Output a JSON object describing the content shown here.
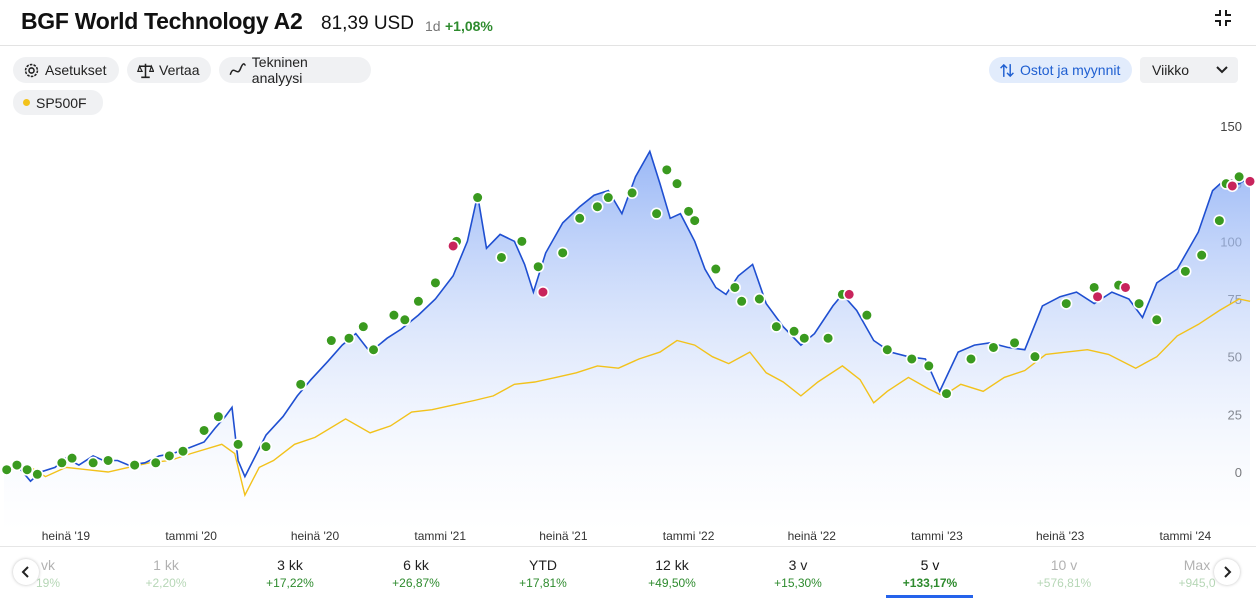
{
  "header": {
    "title": "BGF World Technology A2",
    "price": "81,39 USD",
    "period": "1d",
    "change": "+1,08%"
  },
  "toolbar": {
    "settings_label": "Asetukset",
    "compare_label": "Vertaa",
    "technical_label": "Tekninen analyysi",
    "trades_label": "Ostot ja myynnit",
    "period_select": "Viikko"
  },
  "legend": {
    "comparison": "SP500F"
  },
  "colors": {
    "fund_line": "#1f4fd1",
    "index_line": "#f2c21b",
    "buy_marker": "#3a9a1f",
    "sell_marker": "#c8245c",
    "accent": "#2563eb",
    "positive": "#2e8b2e"
  },
  "icons": {
    "collapse": "collapse-arrows-icon",
    "settings": "gear-icon",
    "compare": "scales-icon",
    "technical": "trend-line-icon",
    "trades": "up-down-arrows-icon",
    "dropdown": "chevron-down-icon",
    "prev": "chevron-left-icon",
    "next": "chevron-right-icon"
  },
  "chart_data": {
    "type": "line",
    "y_ticks": [
      "150",
      "125",
      "100",
      "75",
      "50",
      "25",
      "0"
    ],
    "ylim": [
      -15,
      150
    ],
    "x_ticks": [
      "heinä '19",
      "tammi '20",
      "heinä '20",
      "tammi '21",
      "heinä '21",
      "tammi '22",
      "heinä '22",
      "tammi '23",
      "heinä '23",
      "tammi '24"
    ],
    "x_tick_dates": [
      "2019-07-01",
      "2020-01-01",
      "2020-07-01",
      "2021-01-01",
      "2021-07-01",
      "2022-01-01",
      "2022-07-01",
      "2023-01-01",
      "2023-07-01",
      "2024-01-01"
    ],
    "x_range": [
      "2019-04-01",
      "2024-04-05"
    ],
    "series": [
      {
        "name": "BGF World Technology A2",
        "role": "fund",
        "area": true,
        "points": [
          [
            "2019-04-01",
            0
          ],
          [
            "2019-04-20",
            3
          ],
          [
            "2019-05-10",
            -4
          ],
          [
            "2019-05-25",
            0
          ],
          [
            "2019-06-15",
            2
          ],
          [
            "2019-07-01",
            6
          ],
          [
            "2019-07-20",
            3
          ],
          [
            "2019-08-10",
            7
          ],
          [
            "2019-08-25",
            5
          ],
          [
            "2019-09-15",
            5
          ],
          [
            "2019-10-01",
            3
          ],
          [
            "2019-10-25",
            4
          ],
          [
            "2019-11-15",
            7
          ],
          [
            "2019-12-05",
            8
          ],
          [
            "2019-12-25",
            10
          ],
          [
            "2020-01-20",
            13
          ],
          [
            "2020-02-05",
            19
          ],
          [
            "2020-02-20",
            24
          ],
          [
            "2020-03-01",
            28
          ],
          [
            "2020-03-10",
            5
          ],
          [
            "2020-03-20",
            -2
          ],
          [
            "2020-04-01",
            5
          ],
          [
            "2020-04-20",
            16
          ],
          [
            "2020-05-15",
            24
          ],
          [
            "2020-06-05",
            33
          ],
          [
            "2020-06-25",
            40
          ],
          [
            "2020-07-20",
            48
          ],
          [
            "2020-08-10",
            55
          ],
          [
            "2020-08-30",
            60
          ],
          [
            "2020-09-20",
            52
          ],
          [
            "2020-10-15",
            58
          ],
          [
            "2020-11-05",
            62
          ],
          [
            "2020-11-30",
            68
          ],
          [
            "2020-12-25",
            75
          ],
          [
            "2021-01-20",
            85
          ],
          [
            "2021-02-10",
            100
          ],
          [
            "2021-02-25",
            120
          ],
          [
            "2021-03-10",
            97
          ],
          [
            "2021-03-30",
            103
          ],
          [
            "2021-04-20",
            100
          ],
          [
            "2021-05-05",
            90
          ],
          [
            "2021-05-18",
            78
          ],
          [
            "2021-06-05",
            95
          ],
          [
            "2021-06-30",
            108
          ],
          [
            "2021-07-25",
            115
          ],
          [
            "2021-08-15",
            120
          ],
          [
            "2021-09-05",
            122
          ],
          [
            "2021-09-25",
            112
          ],
          [
            "2021-10-15",
            128
          ],
          [
            "2021-11-05",
            139
          ],
          [
            "2021-11-20",
            125
          ],
          [
            "2021-12-05",
            110
          ],
          [
            "2021-12-20",
            112
          ],
          [
            "2022-01-10",
            100
          ],
          [
            "2022-01-25",
            88
          ],
          [
            "2022-02-10",
            80
          ],
          [
            "2022-02-25",
            77
          ],
          [
            "2022-03-15",
            85
          ],
          [
            "2022-04-05",
            90
          ],
          [
            "2022-04-25",
            73
          ],
          [
            "2022-05-20",
            63
          ],
          [
            "2022-06-15",
            55
          ],
          [
            "2022-07-05",
            60
          ],
          [
            "2022-08-01",
            72
          ],
          [
            "2022-08-15",
            77
          ],
          [
            "2022-09-05",
            70
          ],
          [
            "2022-09-30",
            57
          ],
          [
            "2022-10-25",
            52
          ],
          [
            "2022-11-20",
            50
          ],
          [
            "2022-12-15",
            49
          ],
          [
            "2023-01-05",
            35
          ],
          [
            "2023-02-01",
            52
          ],
          [
            "2023-02-25",
            55
          ],
          [
            "2023-03-20",
            56
          ],
          [
            "2023-04-15",
            54
          ],
          [
            "2023-05-10",
            53
          ],
          [
            "2023-06-05",
            72
          ],
          [
            "2023-07-01",
            76
          ],
          [
            "2023-07-25",
            78
          ],
          [
            "2023-08-20",
            73
          ],
          [
            "2023-09-15",
            78
          ],
          [
            "2023-10-10",
            75
          ],
          [
            "2023-10-30",
            67
          ],
          [
            "2023-11-20",
            82
          ],
          [
            "2023-12-20",
            88
          ],
          [
            "2024-01-20",
            104
          ],
          [
            "2024-02-10",
            122
          ],
          [
            "2024-02-25",
            126
          ],
          [
            "2024-03-15",
            124
          ],
          [
            "2024-04-05",
            128
          ]
        ]
      },
      {
        "name": "SP500F",
        "role": "index",
        "area": false,
        "points": [
          [
            "2019-04-01",
            0
          ],
          [
            "2019-05-05",
            3
          ],
          [
            "2019-06-01",
            -2
          ],
          [
            "2019-07-01",
            2
          ],
          [
            "2019-08-01",
            1
          ],
          [
            "2019-09-01",
            0
          ],
          [
            "2019-10-01",
            2
          ],
          [
            "2019-11-01",
            4
          ],
          [
            "2019-12-01",
            5
          ],
          [
            "2020-01-01",
            8
          ],
          [
            "2020-02-15",
            12
          ],
          [
            "2020-03-05",
            8
          ],
          [
            "2020-03-20",
            -10
          ],
          [
            "2020-04-10",
            2
          ],
          [
            "2020-05-01",
            5
          ],
          [
            "2020-06-01",
            12
          ],
          [
            "2020-07-01",
            15
          ],
          [
            "2020-08-15",
            23
          ],
          [
            "2020-09-20",
            17
          ],
          [
            "2020-10-20",
            20
          ],
          [
            "2020-11-20",
            26
          ],
          [
            "2020-12-20",
            27
          ],
          [
            "2021-01-20",
            29
          ],
          [
            "2021-02-20",
            31
          ],
          [
            "2021-03-20",
            33
          ],
          [
            "2021-04-20",
            38
          ],
          [
            "2021-05-20",
            39
          ],
          [
            "2021-06-20",
            41
          ],
          [
            "2021-07-20",
            43
          ],
          [
            "2021-08-20",
            46
          ],
          [
            "2021-09-20",
            45
          ],
          [
            "2021-10-20",
            49
          ],
          [
            "2021-11-20",
            52
          ],
          [
            "2021-12-15",
            57
          ],
          [
            "2022-01-10",
            55
          ],
          [
            "2022-02-05",
            50
          ],
          [
            "2022-03-01",
            47
          ],
          [
            "2022-04-01",
            52
          ],
          [
            "2022-04-25",
            43
          ],
          [
            "2022-05-20",
            39
          ],
          [
            "2022-06-15",
            33
          ],
          [
            "2022-07-10",
            39
          ],
          [
            "2022-08-15",
            46
          ],
          [
            "2022-09-10",
            40
          ],
          [
            "2022-09-30",
            30
          ],
          [
            "2022-10-20",
            35
          ],
          [
            "2022-11-20",
            41
          ],
          [
            "2022-12-20",
            36
          ],
          [
            "2023-01-10",
            33
          ],
          [
            "2023-02-05",
            38
          ],
          [
            "2023-03-10",
            35
          ],
          [
            "2023-04-10",
            41
          ],
          [
            "2023-05-10",
            44
          ],
          [
            "2023-06-10",
            51
          ],
          [
            "2023-07-10",
            52
          ],
          [
            "2023-08-10",
            53
          ],
          [
            "2023-09-10",
            51
          ],
          [
            "2023-10-20",
            45
          ],
          [
            "2023-11-20",
            50
          ],
          [
            "2023-12-20",
            59
          ],
          [
            "2024-01-20",
            64
          ],
          [
            "2024-02-20",
            70
          ],
          [
            "2024-03-20",
            75
          ],
          [
            "2024-04-05",
            74
          ]
        ]
      }
    ],
    "trade_markers": {
      "buy": [
        [
          "2019-04-05",
          1
        ],
        [
          "2019-04-20",
          3
        ],
        [
          "2019-05-05",
          1
        ],
        [
          "2019-05-20",
          -1
        ],
        [
          "2019-06-25",
          4
        ],
        [
          "2019-07-10",
          6
        ],
        [
          "2019-08-10",
          4
        ],
        [
          "2019-09-01",
          5
        ],
        [
          "2019-10-10",
          3
        ],
        [
          "2019-11-10",
          4
        ],
        [
          "2019-11-30",
          7
        ],
        [
          "2019-12-20",
          9
        ],
        [
          "2020-01-20",
          18
        ],
        [
          "2020-02-10",
          24
        ],
        [
          "2020-03-10",
          12
        ],
        [
          "2020-04-20",
          11
        ],
        [
          "2020-06-10",
          38
        ],
        [
          "2020-07-25",
          57
        ],
        [
          "2020-08-20",
          58
        ],
        [
          "2020-09-10",
          63
        ],
        [
          "2020-09-25",
          53
        ],
        [
          "2020-10-25",
          68
        ],
        [
          "2020-11-10",
          66
        ],
        [
          "2020-11-30",
          74
        ],
        [
          "2020-12-25",
          82
        ],
        [
          "2021-01-25",
          100
        ],
        [
          "2021-02-25",
          119
        ],
        [
          "2021-04-01",
          93
        ],
        [
          "2021-05-01",
          100
        ],
        [
          "2021-05-25",
          89
        ],
        [
          "2021-06-30",
          95
        ],
        [
          "2021-07-25",
          110
        ],
        [
          "2021-08-20",
          115
        ],
        [
          "2021-09-05",
          119
        ],
        [
          "2021-10-10",
          121
        ],
        [
          "2021-11-15",
          112
        ],
        [
          "2021-11-30",
          131
        ],
        [
          "2021-12-15",
          125
        ],
        [
          "2022-01-01",
          113
        ],
        [
          "2022-01-10",
          109
        ],
        [
          "2022-02-10",
          88
        ],
        [
          "2022-03-10",
          80
        ],
        [
          "2022-03-20",
          74
        ],
        [
          "2022-04-15",
          75
        ],
        [
          "2022-05-10",
          63
        ],
        [
          "2022-06-05",
          61
        ],
        [
          "2022-06-20",
          58
        ],
        [
          "2022-07-25",
          58
        ],
        [
          "2022-08-15",
          77
        ],
        [
          "2022-09-20",
          68
        ],
        [
          "2022-10-20",
          53
        ],
        [
          "2022-11-25",
          49
        ],
        [
          "2022-12-20",
          46
        ],
        [
          "2023-01-15",
          34
        ],
        [
          "2023-02-20",
          49
        ],
        [
          "2023-03-25",
          54
        ],
        [
          "2023-04-25",
          56
        ],
        [
          "2023-05-25",
          50
        ],
        [
          "2023-07-10",
          73
        ],
        [
          "2023-08-20",
          80
        ],
        [
          "2023-09-25",
          81
        ],
        [
          "2023-10-25",
          73
        ],
        [
          "2023-11-20",
          66
        ],
        [
          "2024-01-01",
          87
        ],
        [
          "2024-01-25",
          94
        ],
        [
          "2024-02-20",
          109
        ],
        [
          "2024-03-01",
          125
        ],
        [
          "2024-03-20",
          128
        ]
      ],
      "sell": [
        [
          "2021-01-20",
          98
        ],
        [
          "2021-06-01",
          78
        ],
        [
          "2022-08-25",
          77
        ],
        [
          "2023-08-25",
          76
        ],
        [
          "2023-10-05",
          80
        ],
        [
          "2024-03-10",
          124
        ],
        [
          "2024-04-05",
          126
        ]
      ]
    }
  },
  "ranges": [
    {
      "label": "vk",
      "change": "19%",
      "state": "faded"
    },
    {
      "label": "1 kk",
      "change": "+2,20%",
      "state": "faded"
    },
    {
      "label": "3 kk",
      "change": "+17,22%",
      "state": "normal"
    },
    {
      "label": "6 kk",
      "change": "+26,87%",
      "state": "normal"
    },
    {
      "label": "YTD",
      "change": "+17,81%",
      "state": "normal"
    },
    {
      "label": "12 kk",
      "change": "+49,50%",
      "state": "normal"
    },
    {
      "label": "3 v",
      "change": "+15,30%",
      "state": "normal"
    },
    {
      "label": "5 v",
      "change": "+133,17%",
      "state": "active"
    },
    {
      "label": "10 v",
      "change": "+576,81%",
      "state": "faded"
    },
    {
      "label": "Max",
      "change": "+945,0",
      "state": "faded"
    }
  ]
}
